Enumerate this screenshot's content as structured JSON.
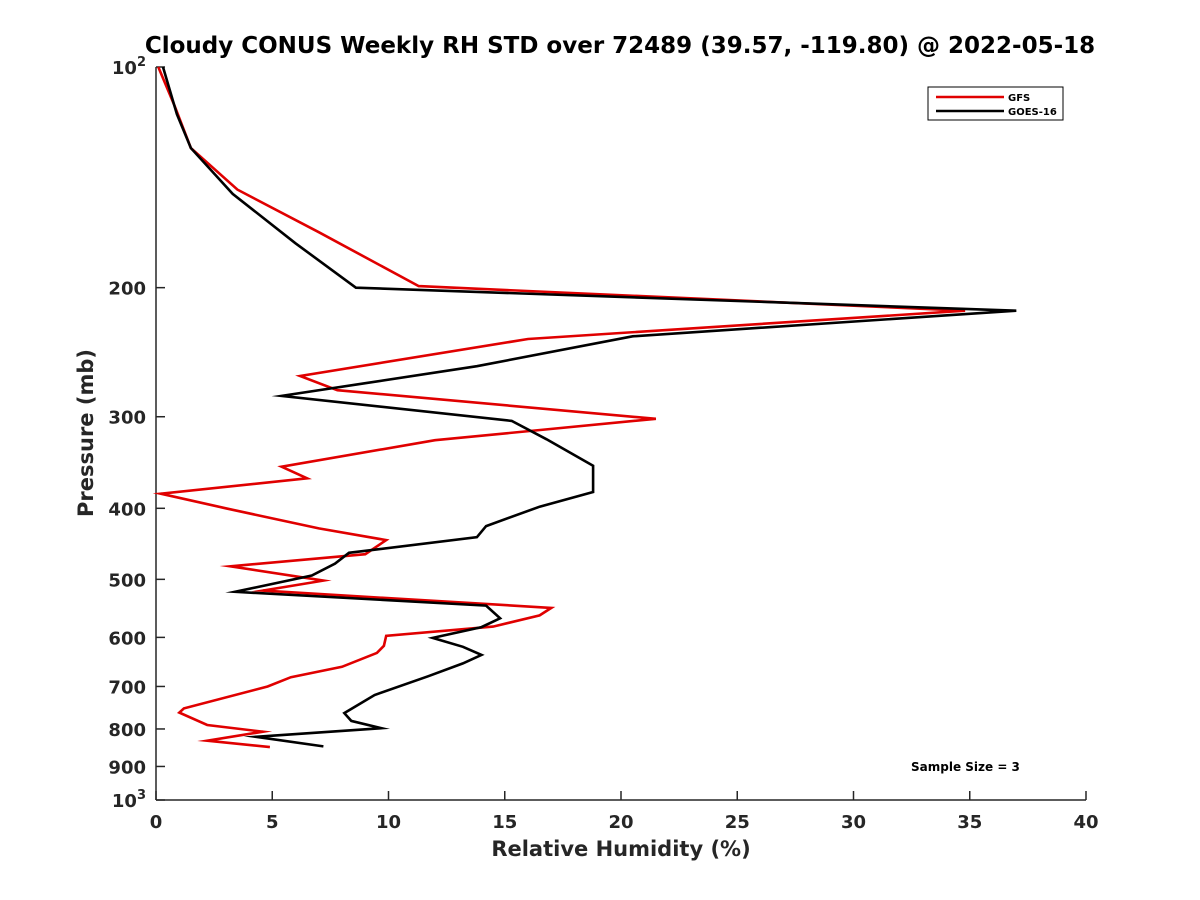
{
  "chart_data": {
    "type": "line",
    "title": "Cloudy CONUS Weekly RH STD over 72489 (39.57, -119.80) @ 2022-05-18",
    "xlabel": "Relative Humidity (%)",
    "ylabel": "Pressure (mb)",
    "xlim": [
      0,
      40
    ],
    "ylim": [
      100,
      1000
    ],
    "y_scale": "log",
    "y_reversed": true,
    "x_ticks": [
      0,
      5,
      10,
      15,
      20,
      25,
      30,
      35,
      40
    ],
    "y_ticks": [
      {
        "value": 100,
        "base": "10",
        "exp": "2"
      },
      {
        "value": 200,
        "label": "200"
      },
      {
        "value": 300,
        "label": "300"
      },
      {
        "value": 400,
        "label": "400"
      },
      {
        "value": 500,
        "label": "500"
      },
      {
        "value": 600,
        "label": "600"
      },
      {
        "value": 700,
        "label": "700"
      },
      {
        "value": 800,
        "label": "800"
      },
      {
        "value": 900,
        "label": "900"
      },
      {
        "value": 1000,
        "base": "10",
        "exp": "3"
      }
    ],
    "grid": false,
    "legend_position": "top-right",
    "series": [
      {
        "name": "GFS",
        "color": "#e00000",
        "points": [
          [
            0.1,
            100
          ],
          [
            0.8,
            113
          ],
          [
            1.5,
            129
          ],
          [
            3.5,
            147
          ],
          [
            7.0,
            168
          ],
          [
            11.3,
            199
          ],
          [
            34.8,
            215
          ],
          [
            16.0,
            235
          ],
          [
            6.2,
            264
          ],
          [
            7.8,
            276
          ],
          [
            21.5,
            302
          ],
          [
            12.0,
            323
          ],
          [
            5.4,
            351
          ],
          [
            6.5,
            364
          ],
          [
            0.2,
            382
          ],
          [
            3.0,
            400
          ],
          [
            7.0,
            426
          ],
          [
            9.9,
            442
          ],
          [
            9.0,
            462
          ],
          [
            3.2,
            480
          ],
          [
            7.2,
            502
          ],
          [
            4.6,
            518
          ],
          [
            17.0,
            547
          ],
          [
            16.5,
            560
          ],
          [
            14.5,
            580
          ],
          [
            9.9,
            597
          ],
          [
            9.8,
            616
          ],
          [
            9.5,
            630
          ],
          [
            8.0,
            658
          ],
          [
            5.8,
            680
          ],
          [
            4.8,
            700
          ],
          [
            1.2,
            750
          ],
          [
            1.0,
            760
          ],
          [
            2.2,
            790
          ],
          [
            4.6,
            807
          ],
          [
            2.2,
            830
          ],
          [
            4.9,
            847
          ]
        ]
      },
      {
        "name": "GOES-16",
        "color": "#000000",
        "points": [
          [
            0.3,
            100
          ],
          [
            0.9,
            116
          ],
          [
            1.5,
            129
          ],
          [
            3.3,
            149
          ],
          [
            6.0,
            174
          ],
          [
            8.6,
            200
          ],
          [
            37.0,
            215
          ],
          [
            20.5,
            233
          ],
          [
            13.8,
            256
          ],
          [
            5.4,
            281
          ],
          [
            15.3,
            304
          ],
          [
            16.8,
            322
          ],
          [
            18.8,
            350
          ],
          [
            18.8,
            380
          ],
          [
            16.5,
            398
          ],
          [
            14.2,
            423
          ],
          [
            13.8,
            438
          ],
          [
            8.3,
            460
          ],
          [
            7.7,
            476
          ],
          [
            6.7,
            494
          ],
          [
            3.4,
            520
          ],
          [
            14.2,
            543
          ],
          [
            14.8,
            565
          ],
          [
            14.0,
            581
          ],
          [
            11.9,
            601
          ],
          [
            13.2,
            618
          ],
          [
            14.0,
            634
          ],
          [
            13.2,
            651
          ],
          [
            11.7,
            678
          ],
          [
            9.4,
            719
          ],
          [
            8.1,
            761
          ],
          [
            8.4,
            780
          ],
          [
            9.7,
            798
          ],
          [
            4.3,
            820
          ],
          [
            7.2,
            845
          ]
        ]
      }
    ],
    "annotations": [
      "Sample Size = 3"
    ]
  }
}
